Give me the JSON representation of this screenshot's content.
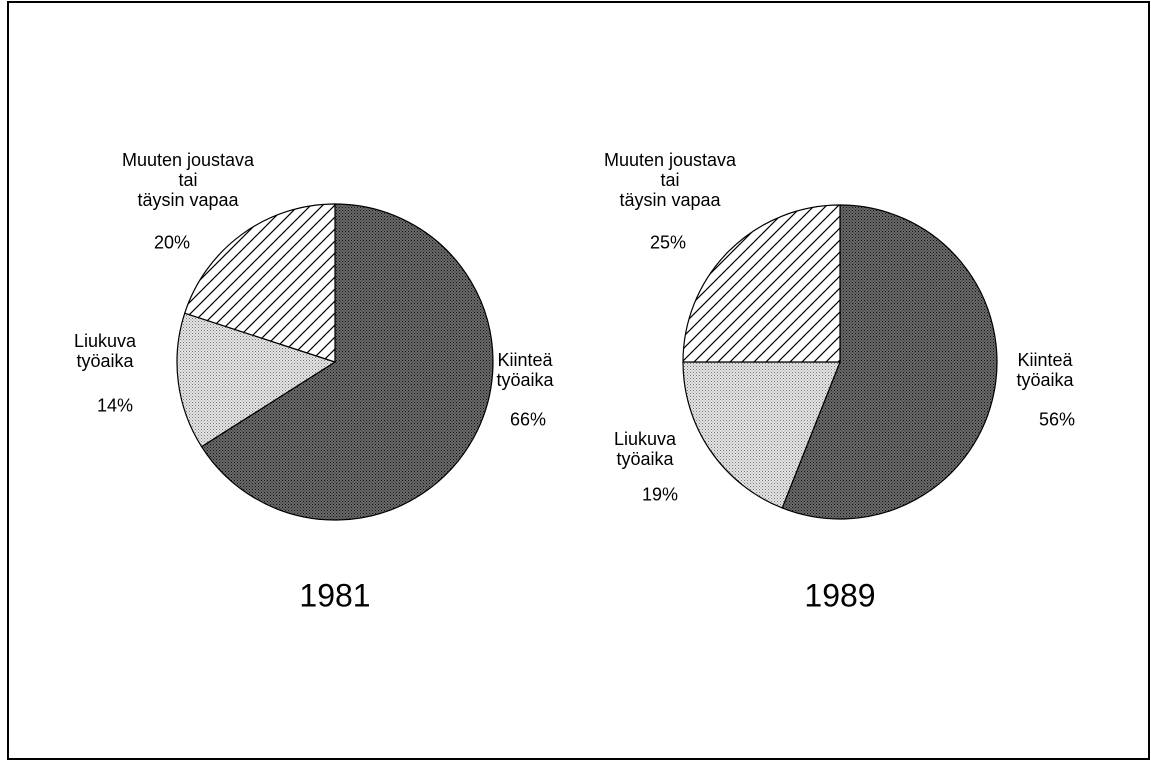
{
  "chart_data": [
    {
      "type": "pie",
      "title": "1981",
      "categories": [
        "Kiinteä\ntyöaika",
        "Liukuva\ntyöaika",
        "Muuten joustava\ntai\ntäysin vapaa"
      ],
      "values": [
        66,
        14,
        20
      ],
      "value_labels": [
        "66%",
        "14%",
        "20%"
      ],
      "colors": [
        "#4a4a4a",
        "#c8c8c8",
        "#ffffff"
      ],
      "patterns": [
        "dense-dots",
        "light-dots",
        "diagonal"
      ]
    },
    {
      "type": "pie",
      "title": "1989",
      "categories": [
        "Kiinteä\ntyöaika",
        "Liukuva\ntyöaika",
        "Muuten joustava\ntai\ntäysin vapaa"
      ],
      "values": [
        56,
        19,
        25
      ],
      "value_labels": [
        "56%",
        "19%",
        "25%"
      ],
      "colors": [
        "#4a4a4a",
        "#c8c8c8",
        "#ffffff"
      ],
      "patterns": [
        "dense-dots",
        "light-dots",
        "diagonal"
      ]
    }
  ]
}
